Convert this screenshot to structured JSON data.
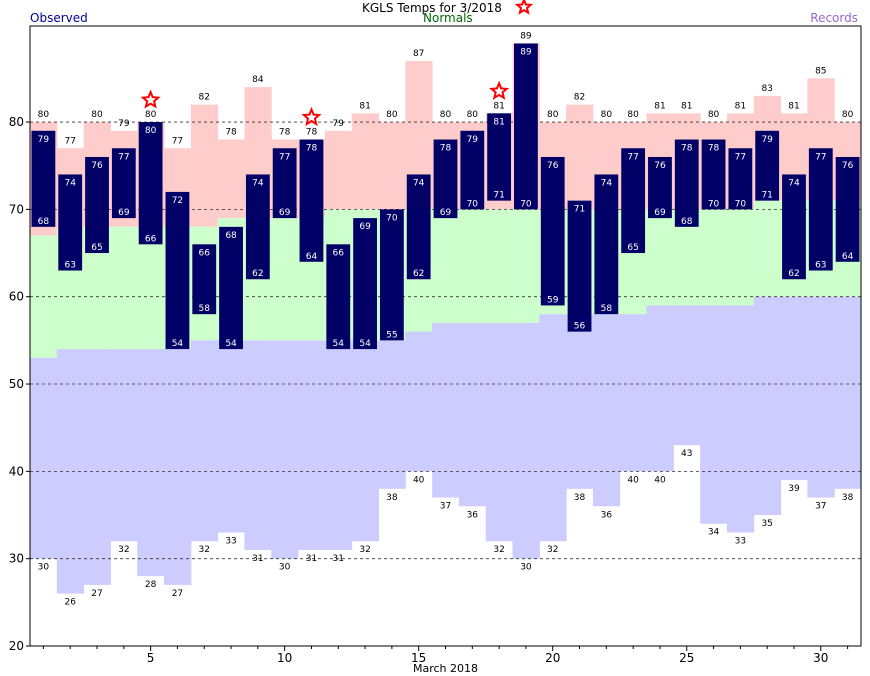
{
  "header": {
    "title": "KGLS Temps for 3/2018",
    "left_label": "Observed",
    "center_label": "Normals",
    "right_label": "Records"
  },
  "chart_data": {
    "type": "bar",
    "xlabel": "March 2018",
    "ylabel": "",
    "ylim": [
      20,
      91
    ],
    "x_ticks": [
      5,
      10,
      15,
      20,
      25,
      30
    ],
    "y_ticks": [
      20,
      30,
      40,
      50,
      60,
      70,
      80
    ],
    "grid": true,
    "days": [
      1,
      2,
      3,
      4,
      5,
      6,
      7,
      8,
      9,
      10,
      11,
      12,
      13,
      14,
      15,
      16,
      17,
      18,
      19,
      20,
      21,
      22,
      23,
      24,
      25,
      26,
      27,
      28,
      29,
      30,
      31
    ],
    "series": [
      {
        "name": "Observed",
        "high": [
          79,
          74,
          76,
          77,
          80,
          72,
          66,
          68,
          74,
          77,
          78,
          66,
          69,
          70,
          74,
          78,
          79,
          81,
          89,
          76,
          71,
          74,
          77,
          76,
          78,
          78,
          77,
          79,
          74,
          77,
          76
        ],
        "low": [
          68,
          63,
          65,
          69,
          66,
          54,
          58,
          54,
          62,
          69,
          64,
          54,
          54,
          55,
          62,
          69,
          70,
          71,
          70,
          59,
          56,
          58,
          65,
          69,
          68,
          70,
          70,
          71,
          62,
          63,
          64
        ]
      },
      {
        "name": "Normals",
        "high": [
          67,
          68,
          68,
          68,
          68,
          68,
          68,
          69,
          69,
          69,
          69,
          70,
          70,
          70,
          70,
          70,
          70,
          70,
          70,
          70,
          70,
          70,
          70,
          70,
          70,
          70,
          70,
          71,
          71,
          71,
          71
        ],
        "low": [
          53,
          54,
          54,
          54,
          54,
          54,
          55,
          55,
          55,
          55,
          55,
          55,
          55,
          55,
          56,
          57,
          57,
          57,
          57,
          58,
          58,
          58,
          58,
          59,
          59,
          59,
          59,
          60,
          60,
          60,
          60
        ]
      },
      {
        "name": "Records",
        "high": [
          80,
          77,
          80,
          79,
          80,
          77,
          82,
          78,
          84,
          78,
          78,
          79,
          81,
          80,
          87,
          80,
          80,
          81,
          89,
          80,
          82,
          80,
          80,
          81,
          81,
          80,
          81,
          83,
          81,
          85,
          80
        ],
        "low": [
          30,
          26,
          27,
          32,
          28,
          27,
          32,
          33,
          31,
          30,
          31,
          31,
          32,
          38,
          40,
          37,
          36,
          32,
          30,
          32,
          38,
          36,
          40,
          40,
          43,
          34,
          33,
          35,
          39,
          37,
          38
        ]
      }
    ],
    "record_days": [
      5,
      11,
      18
    ],
    "colors": {
      "observed_bar": "#000066",
      "observed_text": "#ffffff",
      "record_high_fill": "#ffcccc",
      "normal_fill": "#ccffcc",
      "record_low_fill": "#ccccff",
      "star": "#ff0000",
      "left_label": "#000099",
      "center_label": "#006600",
      "right_label": "#9966cc",
      "grid": "#333333"
    }
  }
}
